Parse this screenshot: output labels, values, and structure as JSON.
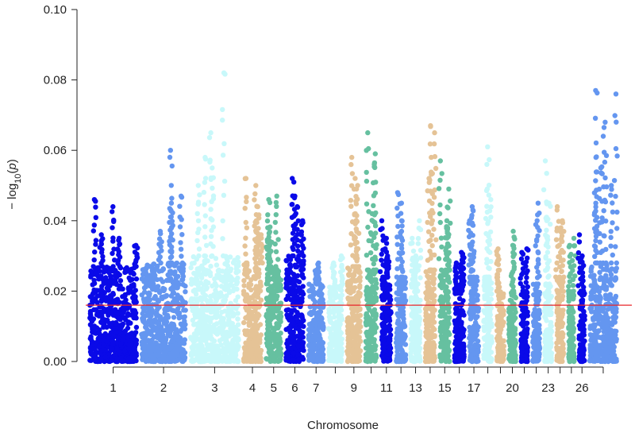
{
  "chart_data": {
    "type": "scatter",
    "subtype": "manhattan",
    "title": "",
    "xlabel": "Chromosome",
    "ylabel": "−log10(p)",
    "ylabel_parts": {
      "prefix": "− log",
      "subscript": "10",
      "open": "(",
      "var": "p",
      "close": ")"
    },
    "ylim": [
      0,
      0.1
    ],
    "y_ticks": [
      "0.00",
      "0.02",
      "0.04",
      "0.06",
      "0.08",
      "0.10"
    ],
    "y_tick_values": [
      0,
      0.02,
      0.04,
      0.06,
      0.08,
      0.1
    ],
    "threshold": {
      "value": 0.016,
      "color": "#e8262a"
    },
    "x_tick_labels": [
      {
        "chrom": 1,
        "label": "1"
      },
      {
        "chrom": 2,
        "label": "2"
      },
      {
        "chrom": 3,
        "label": "3"
      },
      {
        "chrom": 4,
        "label": "4"
      },
      {
        "chrom": 5,
        "label": "5"
      },
      {
        "chrom": 6,
        "label": "6"
      },
      {
        "chrom": 7,
        "label": "7"
      },
      {
        "chrom": 9,
        "label": "9"
      },
      {
        "chrom": 11,
        "label": "11"
      },
      {
        "chrom": 13,
        "label": "13"
      },
      {
        "chrom": 15,
        "label": "15"
      },
      {
        "chrom": 17,
        "label": "17"
      },
      {
        "chrom": 20,
        "label": "20"
      },
      {
        "chrom": 23,
        "label": "23"
      },
      {
        "chrom": 26,
        "label": "26"
      }
    ],
    "palette": [
      "#0a0ae8",
      "#6496f0",
      "#c8f8fa",
      "#e5c396",
      "#66c0a0"
    ],
    "chromosomes": [
      {
        "chrom": 1,
        "width": 1.95,
        "body_max": 0.027,
        "peaks": [
          0.046,
          0.044,
          0.036,
          0.035,
          0.033
        ]
      },
      {
        "chrom": 2,
        "width": 1.85,
        "body_max": 0.028,
        "peaks": [
          0.06,
          0.047,
          0.045,
          0.043,
          0.037
        ]
      },
      {
        "chrom": 3,
        "width": 2.0,
        "body_max": 0.03,
        "peaks": [
          0.082,
          0.065,
          0.058,
          0.055,
          0.05
        ]
      },
      {
        "chrom": 4,
        "width": 0.85,
        "body_max": 0.028,
        "peaks": [
          0.052,
          0.05,
          0.044,
          0.04,
          0.036
        ]
      },
      {
        "chrom": 5,
        "width": 0.75,
        "body_max": 0.027,
        "peaks": [
          0.047,
          0.046,
          0.038,
          0.034
        ]
      },
      {
        "chrom": 6,
        "width": 0.85,
        "body_max": 0.03,
        "peaks": [
          0.052,
          0.047,
          0.044,
          0.04
        ]
      },
      {
        "chrom": 7,
        "width": 0.75,
        "body_max": 0.022,
        "peaks": [
          0.028,
          0.026,
          0.025
        ]
      },
      {
        "chrom": 8,
        "width": 0.7,
        "body_max": 0.022,
        "peaks": [
          0.03,
          0.028
        ]
      },
      {
        "chrom": 9,
        "width": 0.7,
        "body_max": 0.027,
        "peaks": [
          0.058,
          0.052,
          0.05,
          0.042
        ]
      },
      {
        "chrom": 10,
        "width": 0.6,
        "body_max": 0.026,
        "peaks": [
          0.065,
          0.059,
          0.056,
          0.042
        ]
      },
      {
        "chrom": 11,
        "width": 0.55,
        "body_max": 0.024,
        "peaks": [
          0.04,
          0.035,
          0.03
        ]
      },
      {
        "chrom": 12,
        "width": 0.55,
        "body_max": 0.024,
        "peaks": [
          0.048,
          0.045,
          0.04
        ]
      },
      {
        "chrom": 13,
        "width": 0.55,
        "body_max": 0.022,
        "peaks": [
          0.04,
          0.035,
          0.03
        ]
      },
      {
        "chrom": 14,
        "width": 0.55,
        "body_max": 0.026,
        "peaks": [
          0.067,
          0.065,
          0.058,
          0.052
        ]
      },
      {
        "chrom": 15,
        "width": 0.55,
        "body_max": 0.026,
        "peaks": [
          0.057,
          0.049,
          0.04,
          0.038
        ]
      },
      {
        "chrom": 16,
        "width": 0.55,
        "body_max": 0.022,
        "peaks": [
          0.031,
          0.03,
          0.028
        ]
      },
      {
        "chrom": 17,
        "width": 0.55,
        "body_max": 0.024,
        "peaks": [
          0.044,
          0.043,
          0.04
        ]
      },
      {
        "chrom": 18,
        "width": 0.5,
        "body_max": 0.024,
        "peaks": [
          0.061,
          0.049,
          0.046
        ]
      },
      {
        "chrom": 19,
        "width": 0.45,
        "body_max": 0.02,
        "peaks": [
          0.032,
          0.03
        ]
      },
      {
        "chrom": 20,
        "width": 0.45,
        "body_max": 0.02,
        "peaks": [
          0.037,
          0.033
        ]
      },
      {
        "chrom": 21,
        "width": 0.45,
        "body_max": 0.02,
        "peaks": [
          0.032,
          0.031
        ]
      },
      {
        "chrom": 22,
        "width": 0.45,
        "body_max": 0.022,
        "peaks": [
          0.045,
          0.04
        ]
      },
      {
        "chrom": 23,
        "width": 0.45,
        "body_max": 0.022,
        "peaks": [
          0.057,
          0.045,
          0.041
        ]
      },
      {
        "chrom": 24,
        "width": 0.45,
        "body_max": 0.024,
        "peaks": [
          0.044,
          0.04,
          0.038
        ]
      },
      {
        "chrom": 25,
        "width": 0.4,
        "body_max": 0.02,
        "peaks": [
          0.035,
          0.033
        ]
      },
      {
        "chrom": 26,
        "width": 0.4,
        "body_max": 0.02,
        "peaks": [
          0.036,
          0.03
        ]
      },
      {
        "chrom": 27,
        "width": 1.2,
        "body_max": 0.028,
        "peaks": [
          0.077,
          0.076,
          0.068,
          0.064,
          0.058,
          0.055,
          0.05,
          0.045
        ]
      }
    ]
  }
}
